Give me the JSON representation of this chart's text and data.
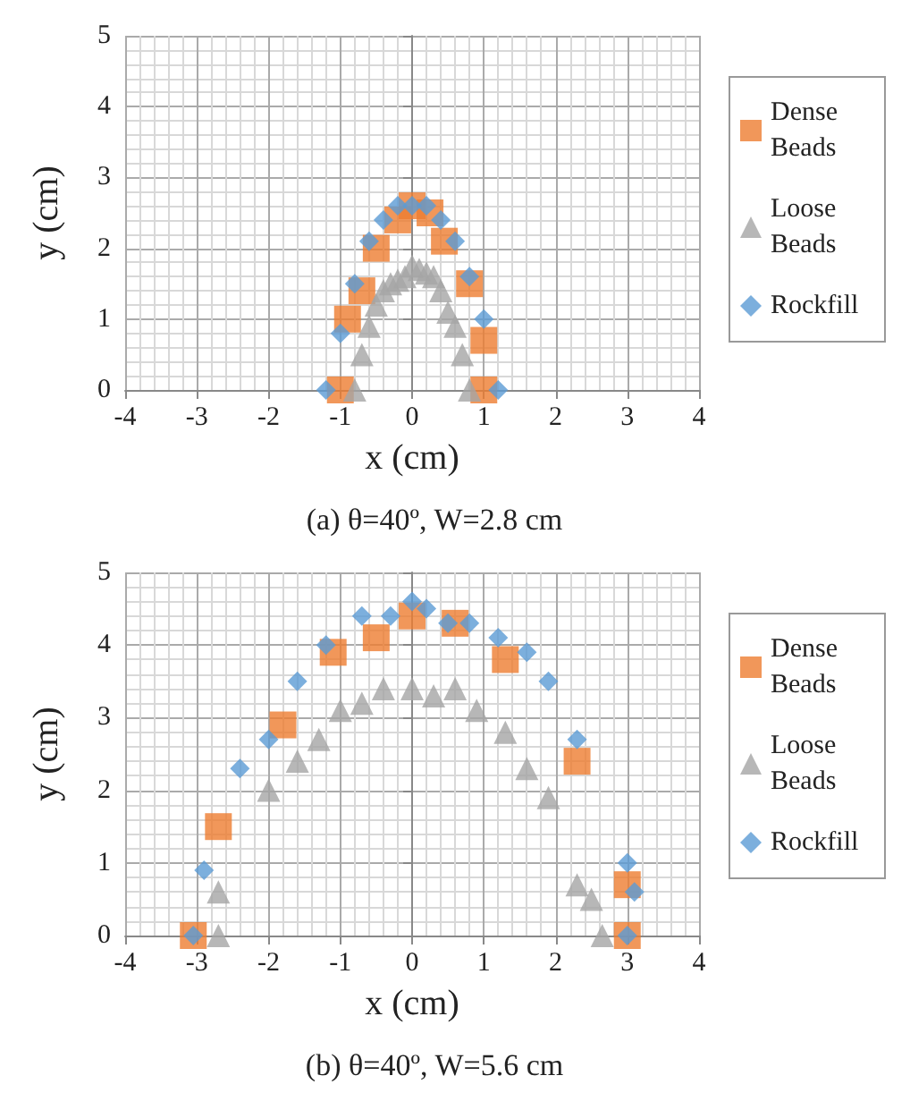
{
  "chart_data": [
    {
      "type": "scatter",
      "xlabel": "x (cm)",
      "ylabel": "y (cm)",
      "annotations": [
        "(a) θ=40º, W=2.8 cm"
      ],
      "xlim": [
        -4,
        4
      ],
      "xticks": [
        -4,
        -3,
        -2,
        -1,
        0,
        1,
        2,
        3,
        4
      ],
      "ylim": [
        0,
        5
      ],
      "yticks": [
        0,
        1,
        2,
        3,
        4,
        5
      ],
      "grid": true,
      "legend": "right",
      "series": [
        {
          "name": "Dense Beads",
          "color": "#ed7d31",
          "marker": "square",
          "x": [
            -1.0,
            -0.9,
            -0.7,
            -0.5,
            -0.2,
            0,
            0.25,
            0.45,
            0.8,
            1.0,
            1.0
          ],
          "values": [
            0,
            1.0,
            1.4,
            2.0,
            2.4,
            2.6,
            2.5,
            2.1,
            1.5,
            0.7,
            0
          ]
        },
        {
          "name": "Loose Beads",
          "color": "#a5a5a5",
          "marker": "triangle",
          "x": [
            -0.8,
            -0.7,
            -0.6,
            -0.5,
            -0.4,
            -0.3,
            -0.2,
            -0.1,
            0,
            0.1,
            0.2,
            0.3,
            0.4,
            0.5,
            0.6,
            0.7,
            0.8
          ],
          "values": [
            0,
            0.5,
            0.9,
            1.2,
            1.4,
            1.5,
            1.55,
            1.6,
            1.75,
            1.7,
            1.65,
            1.6,
            1.4,
            1.1,
            0.9,
            0.5,
            0
          ]
        },
        {
          "name": "Rockfill",
          "color": "#5b9bd5",
          "marker": "diamond",
          "x": [
            -1.2,
            -1.0,
            -0.8,
            -0.6,
            -0.4,
            -0.2,
            0,
            0.2,
            0.4,
            0.6,
            0.8,
            1.0,
            1.2
          ],
          "values": [
            0,
            0.8,
            1.5,
            2.1,
            2.4,
            2.6,
            2.6,
            2.6,
            2.4,
            2.1,
            1.6,
            1.0,
            0
          ]
        }
      ]
    },
    {
      "type": "scatter",
      "xlabel": "x (cm)",
      "ylabel": "y (cm)",
      "annotations": [
        "(b) θ=40º, W=5.6 cm"
      ],
      "xlim": [
        -4,
        4
      ],
      "xticks": [
        -4,
        -3,
        -2,
        -1,
        0,
        1,
        2,
        3,
        4
      ],
      "ylim": [
        0,
        5
      ],
      "yticks": [
        0,
        1,
        2,
        3,
        4,
        5
      ],
      "grid": true,
      "legend": "right",
      "series": [
        {
          "name": "Dense Beads",
          "color": "#ed7d31",
          "marker": "square",
          "x": [
            -3.05,
            -2.7,
            -1.8,
            -1.1,
            -0.5,
            0,
            0.6,
            1.3,
            2.3,
            3.0,
            3.0
          ],
          "values": [
            0,
            1.5,
            2.9,
            3.9,
            4.1,
            4.4,
            4.3,
            3.8,
            2.4,
            0.7,
            0
          ]
        },
        {
          "name": "Loose Beads",
          "color": "#a5a5a5",
          "marker": "triangle",
          "x": [
            -2.7,
            -2.7,
            -2.0,
            -1.6,
            -1.3,
            -1.0,
            -0.7,
            -0.4,
            0,
            0.3,
            0.6,
            0.9,
            1.3,
            1.6,
            1.9,
            2.3,
            2.5,
            2.65
          ],
          "values": [
            0,
            0.6,
            2.0,
            2.4,
            2.7,
            3.1,
            3.2,
            3.4,
            3.4,
            3.3,
            3.4,
            3.1,
            2.8,
            2.3,
            1.9,
            0.7,
            0.5,
            0
          ]
        },
        {
          "name": "Rockfill",
          "color": "#5b9bd5",
          "marker": "diamond",
          "x": [
            -3.05,
            -2.9,
            -2.4,
            -2.0,
            -1.6,
            -1.2,
            -0.7,
            -0.3,
            0,
            0.2,
            0.5,
            0.8,
            1.2,
            1.6,
            1.9,
            2.3,
            3.0,
            3.1,
            3.0
          ],
          "values": [
            0,
            0.9,
            2.3,
            2.7,
            3.5,
            4.0,
            4.4,
            4.4,
            4.6,
            4.5,
            4.3,
            4.3,
            4.1,
            3.9,
            3.5,
            2.7,
            1.0,
            0.6,
            0
          ]
        }
      ]
    }
  ]
}
